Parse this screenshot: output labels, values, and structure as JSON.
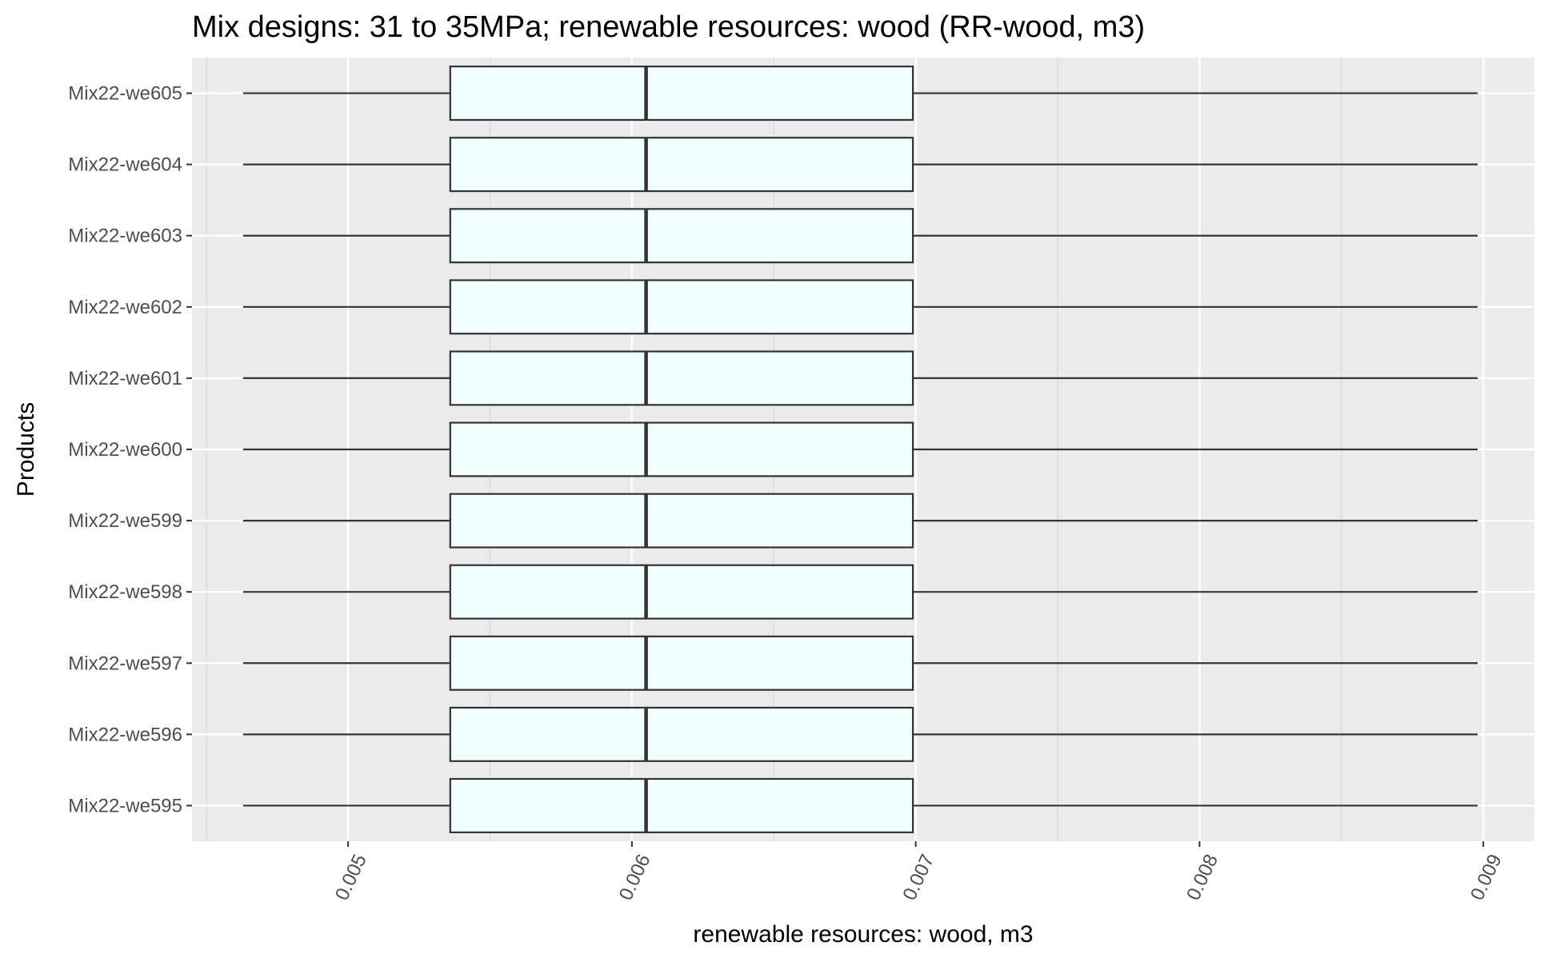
{
  "chart_data": {
    "type": "boxplot",
    "orientation": "horizontal",
    "title": "Mix designs: 31 to 35MPa; renewable resources: wood (RR-wood, m3)",
    "xlabel": "renewable resources: wood, m3",
    "ylabel": "Products",
    "xlim": [
      0.00445,
      0.00918
    ],
    "x_ticks": [
      0.005,
      0.006,
      0.007,
      0.008,
      0.009
    ],
    "x_tick_labels": [
      "0.005",
      "0.006",
      "0.007",
      "0.008",
      "0.009"
    ],
    "grid": true,
    "legend": "none",
    "categories": [
      "Mix22-we595",
      "Mix22-we596",
      "Mix22-we597",
      "Mix22-we598",
      "Mix22-we599",
      "Mix22-we600",
      "Mix22-we601",
      "Mix22-we602",
      "Mix22-we603",
      "Mix22-we604",
      "Mix22-we605"
    ],
    "boxes": [
      {
        "min": 0.00463,
        "q1": 0.00536,
        "median": 0.00605,
        "q3": 0.00699,
        "max": 0.00898
      },
      {
        "min": 0.00463,
        "q1": 0.00536,
        "median": 0.00605,
        "q3": 0.00699,
        "max": 0.00898
      },
      {
        "min": 0.00463,
        "q1": 0.00536,
        "median": 0.00605,
        "q3": 0.00699,
        "max": 0.00898
      },
      {
        "min": 0.00463,
        "q1": 0.00536,
        "median": 0.00605,
        "q3": 0.00699,
        "max": 0.00898
      },
      {
        "min": 0.00463,
        "q1": 0.00536,
        "median": 0.00605,
        "q3": 0.00699,
        "max": 0.00898
      },
      {
        "min": 0.00463,
        "q1": 0.00536,
        "median": 0.00605,
        "q3": 0.00699,
        "max": 0.00898
      },
      {
        "min": 0.00463,
        "q1": 0.00536,
        "median": 0.00605,
        "q3": 0.00699,
        "max": 0.00898
      },
      {
        "min": 0.00463,
        "q1": 0.00536,
        "median": 0.00605,
        "q3": 0.00699,
        "max": 0.00898
      },
      {
        "min": 0.00463,
        "q1": 0.00536,
        "median": 0.00605,
        "q3": 0.00699,
        "max": 0.00898
      },
      {
        "min": 0.00463,
        "q1": 0.00536,
        "median": 0.00605,
        "q3": 0.00699,
        "max": 0.00898
      },
      {
        "min": 0.00463,
        "q1": 0.00536,
        "median": 0.00605,
        "q3": 0.00699,
        "max": 0.00898
      }
    ],
    "colors": {
      "panel_background": "#ebebeb",
      "grid_major": "#ffffff",
      "grid_minor": "#d9d9d9",
      "box_fill": "#f0ffff",
      "box_stroke": "#333333",
      "whisker": "#333333",
      "median": "#333333"
    }
  }
}
